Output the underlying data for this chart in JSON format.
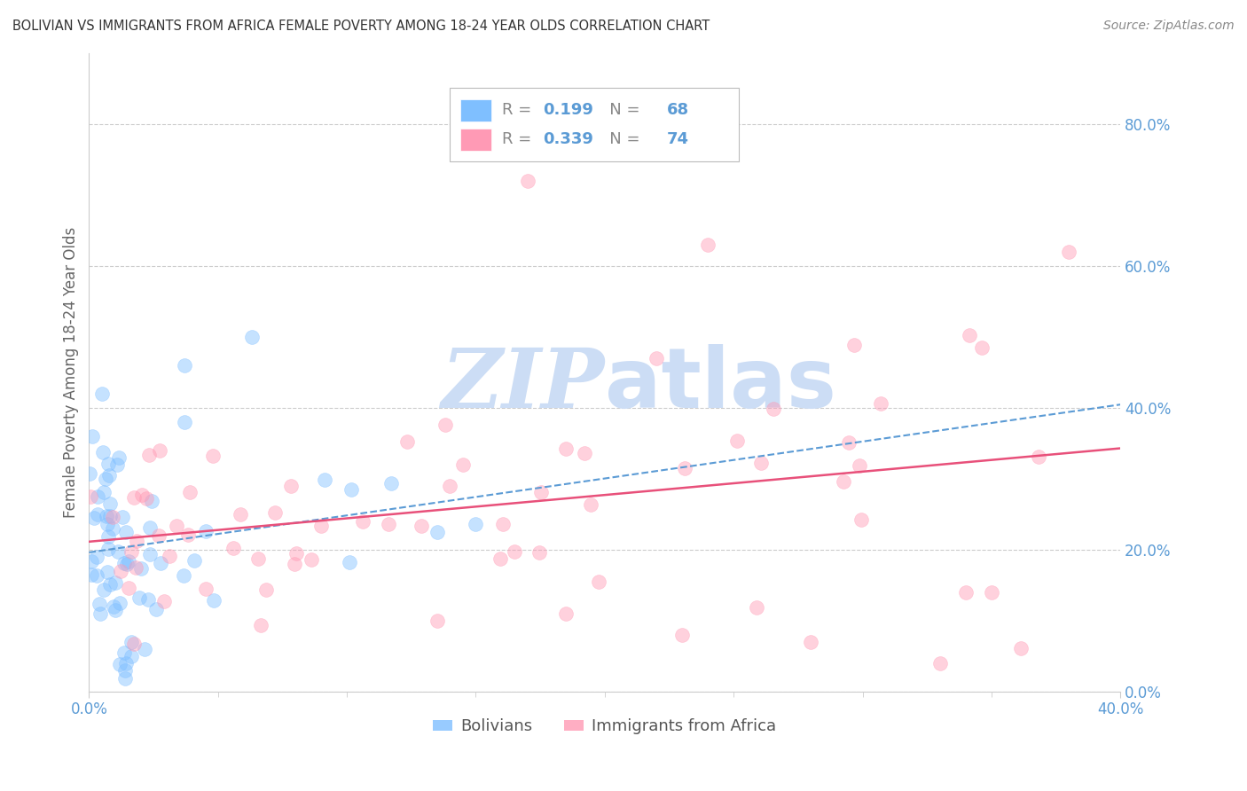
{
  "title": "BOLIVIAN VS IMMIGRANTS FROM AFRICA FEMALE POVERTY AMONG 18-24 YEAR OLDS CORRELATION CHART",
  "source": "Source: ZipAtlas.com",
  "ylabel": "Female Poverty Among 18-24 Year Olds",
  "legend_label_bolivian": "Bolivians",
  "legend_label_africa": "Immigrants from Africa",
  "xlim": [
    0.0,
    0.4
  ],
  "ylim": [
    0.0,
    0.9
  ],
  "yticks": [
    0.0,
    0.2,
    0.4,
    0.6,
    0.8
  ],
  "xticks_show": [
    0.0,
    0.4
  ],
  "xticks_minor": [
    0.05,
    0.1,
    0.15,
    0.2,
    0.25,
    0.3,
    0.35
  ],
  "color_bolivian": "#7fbfff",
  "color_africa": "#ff9ab5",
  "trendline_bolivian_color": "#5b9bd5",
  "trendline_africa_color": "#e8507a",
  "R_bolivian": 0.199,
  "N_bolivian": 68,
  "R_africa": 0.339,
  "N_africa": 74,
  "background_color": "#ffffff",
  "grid_color": "#cccccc",
  "watermark_color": "#ccddf5",
  "tick_label_color": "#5b9bd5",
  "title_color": "#333333",
  "source_color": "#888888"
}
